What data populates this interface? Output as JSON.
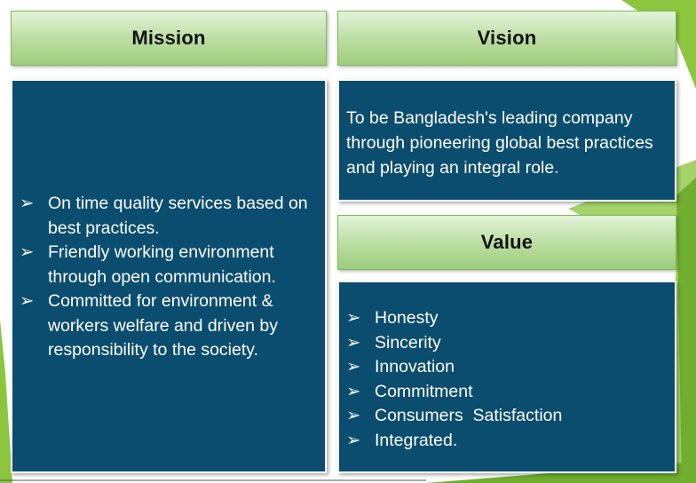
{
  "mission": {
    "title": "Mission",
    "items": [
      "On time quality services based on best practices.",
      "Friendly working environment through open communication.",
      "Committed for environment & workers welfare and driven by responsibility to the society."
    ]
  },
  "vision": {
    "title": "Vision",
    "text": "To be Bangladesh's leading company through pioneering global best practices and playing an integral role."
  },
  "value": {
    "title": "Value",
    "items": [
      "Honesty",
      "Sincerity",
      "Innovation",
      "Commitment",
      "Consumers  Satisfaction",
      "Integrated."
    ]
  },
  "bullet_glyph": "➢",
  "colors": {
    "box_background": "#0b4d6e",
    "header_gradient_light": "#e3f3d8",
    "header_gradient_dark": "#9dcd7c",
    "decor_green": "#8cc63f"
  }
}
